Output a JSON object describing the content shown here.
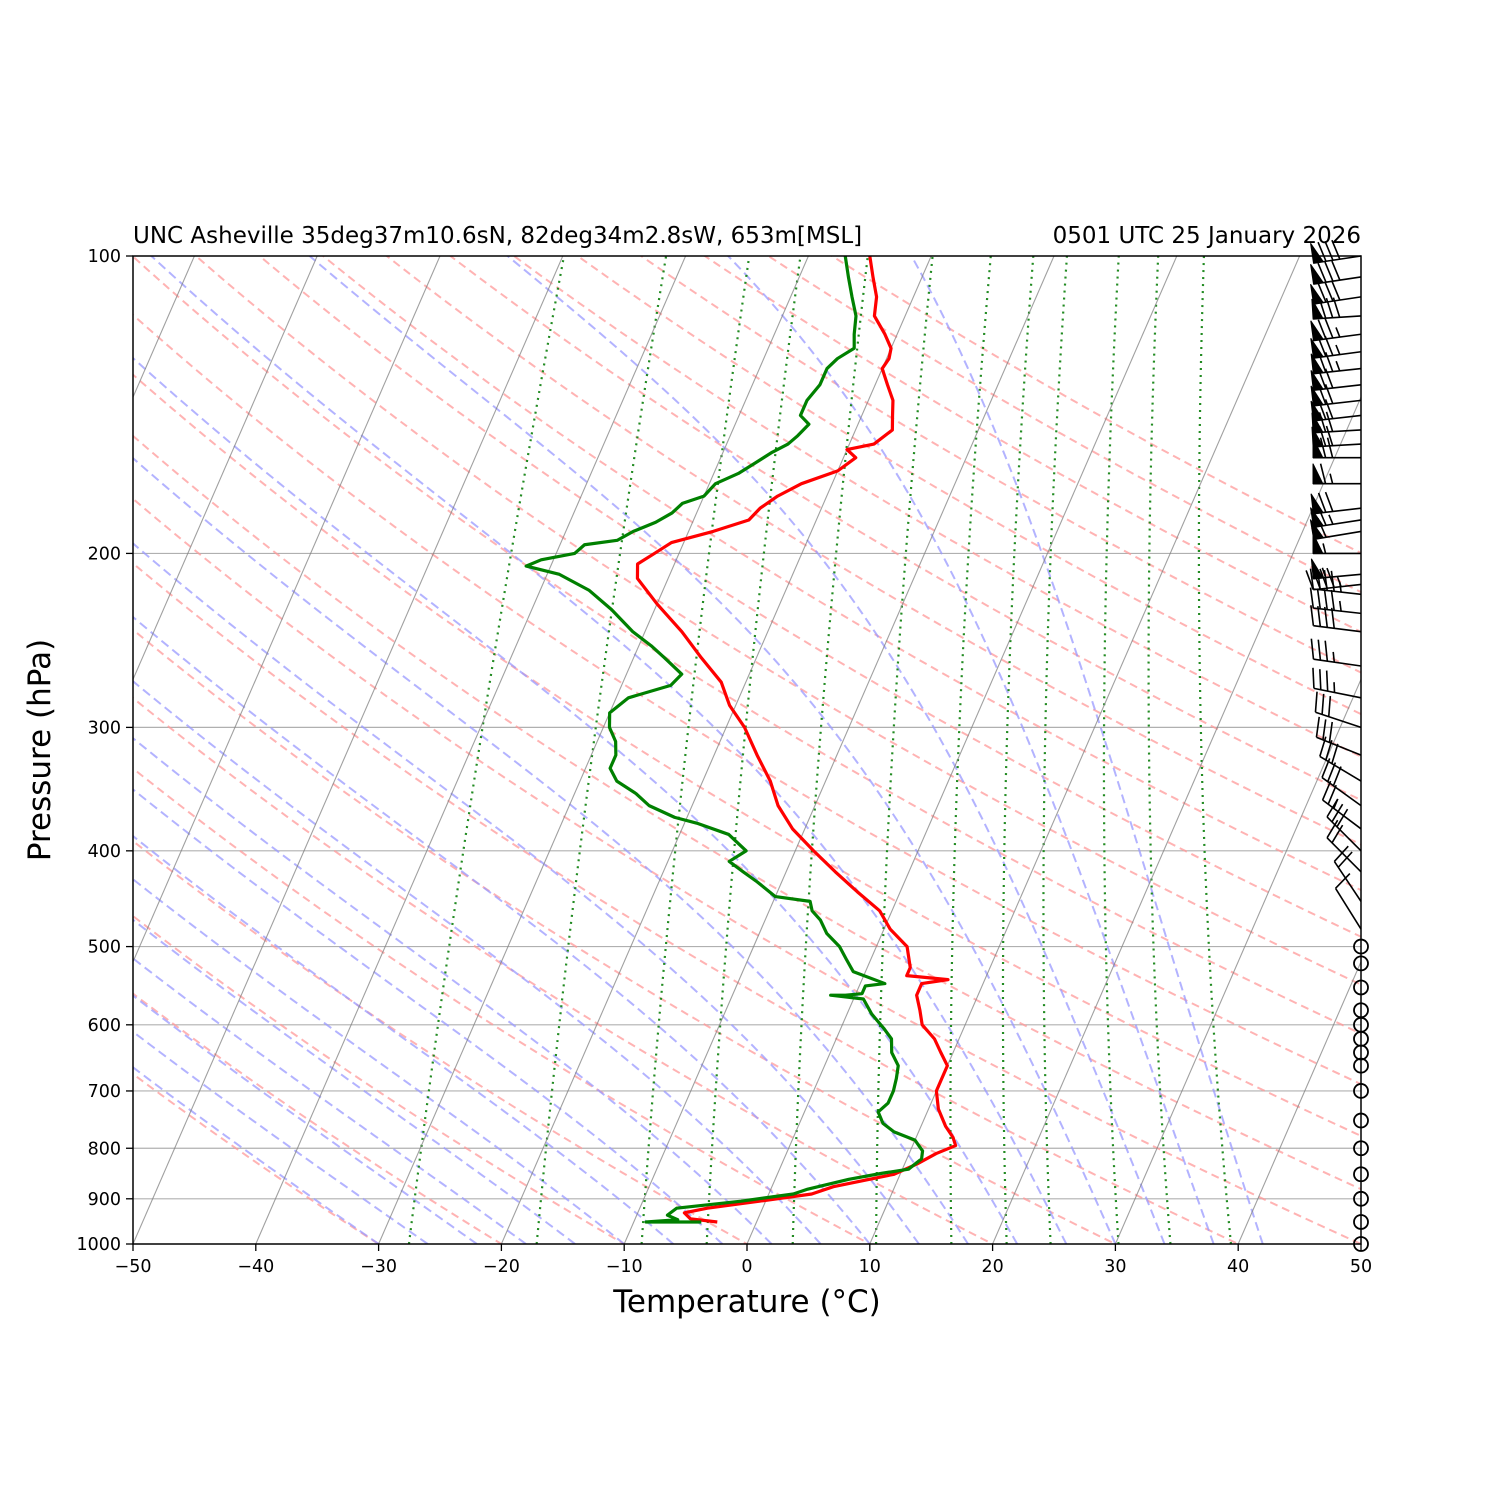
{
  "chart_data": {
    "type": "line",
    "title_left": "UNC Asheville 35deg37m10.6sN, 82deg34m2.8sW, 653m[MSL]",
    "title_right": "0501 UTC 25 January 2026",
    "xlabel": "Temperature (°C)",
    "ylabel": "Pressure (hPa)",
    "xlim": [
      -50,
      50
    ],
    "ylim": [
      1000,
      100
    ],
    "y_scale": "log",
    "x_ticks": [
      -50,
      -40,
      -30,
      -20,
      -10,
      0,
      10,
      20,
      30,
      40,
      50
    ],
    "x_tick_labels": [
      "−50",
      "−40",
      "−30",
      "−20",
      "−10",
      "0",
      "10",
      "20",
      "30",
      "40",
      "50"
    ],
    "y_ticks": [
      1000,
      900,
      800,
      700,
      600,
      500,
      400,
      300,
      200,
      100
    ],
    "y_tick_labels": [
      "1000",
      "900",
      "800",
      "700",
      "600",
      "500",
      "400",
      "300",
      "200",
      "100"
    ],
    "series": [
      {
        "color": "#ff0000",
        "points": [
          [
            -3.2,
            950
          ],
          [
            -5.5,
            943
          ],
          [
            -6.2,
            930
          ],
          [
            -4.5,
            920
          ],
          [
            -0.5,
            905
          ],
          [
            3.5,
            890
          ],
          [
            5.0,
            875
          ],
          [
            9.5,
            850
          ],
          [
            11.0,
            830
          ],
          [
            12.2,
            810
          ],
          [
            13.5,
            795
          ],
          [
            13.0,
            780
          ],
          [
            12.0,
            760
          ],
          [
            10.8,
            730
          ],
          [
            10.0,
            700
          ],
          [
            10.0,
            680
          ],
          [
            10.0,
            660
          ],
          [
            9.0,
            640
          ],
          [
            8.0,
            620
          ],
          [
            6.5,
            600
          ],
          [
            5.8,
            580
          ],
          [
            5.0,
            560
          ],
          [
            5.0,
            545
          ],
          [
            7.0,
            540
          ],
          [
            3.5,
            535
          ],
          [
            3.5,
            525
          ],
          [
            2.5,
            500
          ],
          [
            0.5,
            480
          ],
          [
            -1.0,
            460
          ],
          [
            -3.5,
            440
          ],
          [
            -6.0,
            420
          ],
          [
            -8.5,
            400
          ],
          [
            -11.0,
            380
          ],
          [
            -13.0,
            360
          ],
          [
            -14.5,
            340
          ],
          [
            -16.5,
            320
          ],
          [
            -18.5,
            300
          ],
          [
            -20.5,
            285
          ],
          [
            -22.0,
            270
          ],
          [
            -24.5,
            255
          ],
          [
            -27.0,
            240
          ],
          [
            -30.0,
            225
          ],
          [
            -32.5,
            212
          ],
          [
            -33.0,
            205
          ],
          [
            -32.0,
            200
          ],
          [
            -31.0,
            195
          ],
          [
            -28.0,
            190
          ],
          [
            -25.5,
            185
          ],
          [
            -25.0,
            180
          ],
          [
            -24.0,
            175
          ],
          [
            -22.5,
            170
          ],
          [
            -20.0,
            165
          ],
          [
            -19.0,
            160
          ],
          [
            -20.0,
            157
          ],
          [
            -18.0,
            155
          ],
          [
            -17.0,
            150
          ],
          [
            -17.5,
            145
          ],
          [
            -18.0,
            140
          ],
          [
            -19.0,
            135
          ],
          [
            -20.0,
            130
          ],
          [
            -19.8,
            127
          ],
          [
            -20.0,
            124
          ],
          [
            -21.0,
            120
          ],
          [
            -22.5,
            115
          ],
          [
            -23.0,
            110
          ],
          [
            -24.0,
            105
          ],
          [
            -25.0,
            100
          ]
        ]
      },
      {
        "color": "#008000",
        "points": [
          [
            -4.5,
            950
          ],
          [
            -9.0,
            950
          ],
          [
            -6.5,
            945
          ],
          [
            -7.5,
            935
          ],
          [
            -7.0,
            920
          ],
          [
            -2.0,
            905
          ],
          [
            2.0,
            890
          ],
          [
            3.0,
            880
          ],
          [
            6.0,
            860
          ],
          [
            8.5,
            848
          ],
          [
            10.5,
            840
          ],
          [
            11.2,
            820
          ],
          [
            11.0,
            805
          ],
          [
            10.0,
            785
          ],
          [
            8.0,
            770
          ],
          [
            6.8,
            755
          ],
          [
            6.0,
            735
          ],
          [
            6.5,
            720
          ],
          [
            6.5,
            700
          ],
          [
            6.3,
            680
          ],
          [
            6.0,
            660
          ],
          [
            5.0,
            640
          ],
          [
            4.5,
            620
          ],
          [
            3.5,
            605
          ],
          [
            2.0,
            585
          ],
          [
            0.8,
            565
          ],
          [
            -2.0,
            560
          ],
          [
            -0.8,
            560
          ],
          [
            0.5,
            558
          ],
          [
            0.5,
            548
          ],
          [
            2.0,
            545
          ],
          [
            -1.0,
            530
          ],
          [
            -2.0,
            515
          ],
          [
            -3.0,
            500
          ],
          [
            -4.5,
            485
          ],
          [
            -5.5,
            470
          ],
          [
            -6.5,
            460
          ],
          [
            -7.0,
            450
          ],
          [
            -10.0,
            445
          ],
          [
            -12.0,
            430
          ],
          [
            -13.5,
            420
          ],
          [
            -15.0,
            410
          ],
          [
            -14.0,
            400
          ],
          [
            -16.0,
            385
          ],
          [
            -19.0,
            375
          ],
          [
            -21.0,
            370
          ],
          [
            -23.5,
            360
          ],
          [
            -25.0,
            350
          ],
          [
            -27.0,
            340
          ],
          [
            -28.0,
            330
          ],
          [
            -28.0,
            320
          ],
          [
            -28.5,
            310
          ],
          [
            -29.5,
            300
          ],
          [
            -30.0,
            290
          ],
          [
            -29.0,
            280
          ],
          [
            -26.0,
            272
          ],
          [
            -25.5,
            265
          ],
          [
            -27.5,
            255
          ],
          [
            -29.0,
            248
          ],
          [
            -31.0,
            240
          ],
          [
            -33.5,
            228
          ],
          [
            -36.0,
            218
          ],
          [
            -39.0,
            210
          ],
          [
            -42.0,
            206
          ],
          [
            -41.0,
            203
          ],
          [
            -38.5,
            200
          ],
          [
            -38.0,
            196
          ],
          [
            -35.5,
            194
          ],
          [
            -34.5,
            190
          ],
          [
            -33.0,
            186
          ],
          [
            -32.0,
            182
          ],
          [
            -31.5,
            178
          ],
          [
            -30.0,
            175
          ],
          [
            -29.5,
            170
          ],
          [
            -28.0,
            166
          ],
          [
            -27.0,
            162
          ],
          [
            -26.0,
            158
          ],
          [
            -25.0,
            155
          ],
          [
            -24.5,
            152
          ],
          [
            -24.0,
            148
          ],
          [
            -25.0,
            145
          ],
          [
            -25.0,
            140
          ],
          [
            -24.5,
            135
          ],
          [
            -24.5,
            130
          ],
          [
            -24.0,
            127
          ],
          [
            -23.0,
            124
          ],
          [
            -23.5,
            120
          ],
          [
            -24.0,
            115
          ],
          [
            -25.0,
            110
          ],
          [
            -26.0,
            105
          ],
          [
            -27.0,
            100
          ]
        ]
      }
    ],
    "wind_barbs": [
      {
        "p": 100,
        "u": -80,
        "v": -12
      },
      {
        "p": 105,
        "u": -80,
        "v": -12
      },
      {
        "p": 110,
        "u": -80,
        "v": -12
      },
      {
        "p": 115,
        "u": -80,
        "v": -5
      },
      {
        "p": 120,
        "u": -75,
        "v": -10
      },
      {
        "p": 125,
        "u": -75,
        "v": -10
      },
      {
        "p": 130,
        "u": -75,
        "v": -8
      },
      {
        "p": 135,
        "u": -70,
        "v": -8
      },
      {
        "p": 140,
        "u": -70,
        "v": -8
      },
      {
        "p": 145,
        "u": -70,
        "v": -8
      },
      {
        "p": 150,
        "u": -70,
        "v": -4
      },
      {
        "p": 155,
        "u": -70,
        "v": -4
      },
      {
        "p": 160,
        "u": -70,
        "v": 0
      },
      {
        "p": 170,
        "u": -65,
        "v": 0
      },
      {
        "p": 180,
        "u": -70,
        "v": -8
      },
      {
        "p": 185,
        "u": -65,
        "v": -10
      },
      {
        "p": 190,
        "u": -60,
        "v": -10
      },
      {
        "p": 200,
        "u": -55,
        "v": 0
      },
      {
        "p": 210,
        "u": -55,
        "v": -5
      },
      {
        "p": 215,
        "u": -45,
        "v": -5
      },
      {
        "p": 220,
        "u": -45,
        "v": 5
      },
      {
        "p": 230,
        "u": -45,
        "v": 5
      },
      {
        "p": 240,
        "u": -40,
        "v": 5
      },
      {
        "p": 260,
        "u": -35,
        "v": 5
      },
      {
        "p": 280,
        "u": -35,
        "v": 7
      },
      {
        "p": 300,
        "u": -30,
        "v": 10
      },
      {
        "p": 320,
        "u": -30,
        "v": 12
      },
      {
        "p": 340,
        "u": -25,
        "v": 15
      },
      {
        "p": 360,
        "u": -25,
        "v": 18
      },
      {
        "p": 380,
        "u": -20,
        "v": 15
      },
      {
        "p": 400,
        "u": -20,
        "v": 20
      },
      {
        "p": 420,
        "u": -15,
        "v": 15
      },
      {
        "p": 450,
        "u": -10,
        "v": 15
      },
      {
        "p": 480,
        "u": -5,
        "v": 8
      },
      {
        "p": 500,
        "u": 0,
        "v": 0
      },
      {
        "p": 520,
        "u": 0,
        "v": 0
      },
      {
        "p": 550,
        "u": 0,
        "v": 0
      },
      {
        "p": 580,
        "u": 0,
        "v": 0
      },
      {
        "p": 600,
        "u": 0,
        "v": 0
      },
      {
        "p": 620,
        "u": 0,
        "v": 0
      },
      {
        "p": 640,
        "u": 0,
        "v": 0
      },
      {
        "p": 660,
        "u": 0,
        "v": 0
      },
      {
        "p": 700,
        "u": 0,
        "v": 0
      },
      {
        "p": 750,
        "u": 0,
        "v": 0
      },
      {
        "p": 800,
        "u": 0,
        "v": 0
      },
      {
        "p": 850,
        "u": 0,
        "v": 0
      },
      {
        "p": 900,
        "u": 0,
        "v": 0
      },
      {
        "p": 950,
        "u": 0,
        "v": 0
      },
      {
        "p": 1000,
        "u": 0,
        "v": 0
      }
    ],
    "colors": {
      "temperature": "#ff0000",
      "dewpoint": "#008000",
      "dry_adiabats": "#ff9999",
      "moist_adiabats": "#9999ff",
      "mixing_ratio": "#228b22",
      "isotherms": "#808080",
      "isobars": "#b0b0b0"
    }
  }
}
